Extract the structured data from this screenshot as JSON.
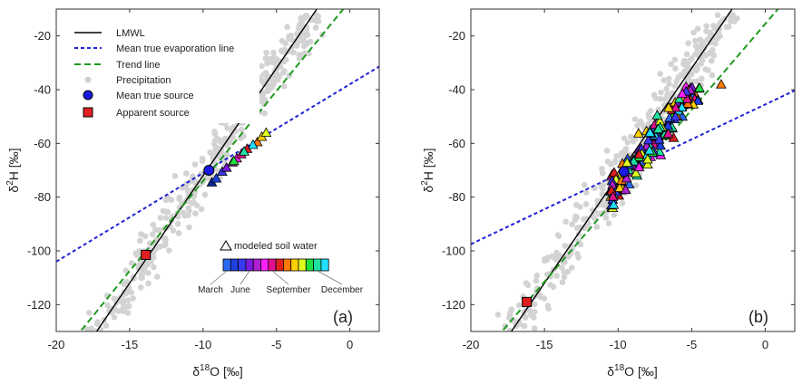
{
  "chart_data": [
    {
      "type": "scatter",
      "panel_label": "(a)",
      "xlabel": {
        "prefix": "δ",
        "sup": "18",
        "main": "O [‰]"
      },
      "ylabel": {
        "prefix": "δ",
        "sup": "2",
        "main": "H [‰]"
      },
      "xlim": [
        -20,
        2
      ],
      "ylim": [
        -130,
        -10
      ],
      "xticks": [
        -20,
        -15,
        -10,
        -5,
        0
      ],
      "yticks": [
        -120,
        -100,
        -80,
        -60,
        -40,
        -20
      ],
      "grid": false,
      "legend": {
        "placement": "top-left",
        "entries": [
          {
            "label": "LMWL",
            "kind": "line",
            "color": "#000000",
            "dash": "solid"
          },
          {
            "label": "Mean true evaporation line",
            "kind": "line",
            "color": "#1f1fd6",
            "dash": "dashed"
          },
          {
            "label": "Trend line",
            "kind": "line",
            "color": "#1f9a1f",
            "dash": "dashed"
          },
          {
            "label": "Precipitation",
            "kind": "dot",
            "color": "#cfcfcf"
          },
          {
            "label": "Mean true source",
            "kind": "circle",
            "color": "#1a1ae0"
          },
          {
            "label": "Apparent source",
            "kind": "square",
            "color": "#e02020"
          }
        ]
      },
      "lines": [
        {
          "name": "LMWL",
          "slope": 8.0,
          "intercept": 8.0,
          "color": "#000000",
          "dash": "solid"
        },
        {
          "name": "Mean true evaporation line",
          "slope": 3.3,
          "intercept": -38.0,
          "color": "#1f1fd6",
          "dash": "dashed"
        },
        {
          "name": "Trend line",
          "slope": 6.7,
          "intercept": -7.0,
          "color": "#1f9a1f",
          "dash": "dashed"
        }
      ],
      "mean_true_source": {
        "x": -9.6,
        "y": -70,
        "color": "#1a1ae0"
      },
      "apparent_source": {
        "x": -13.9,
        "y": -101.5,
        "color": "#e02020"
      },
      "soil_water": [
        {
          "x": -9.4,
          "y": -74.5,
          "color": "#0a2a9a"
        },
        {
          "x": -9.1,
          "y": -73,
          "color": "#2040e0"
        },
        {
          "x": -8.7,
          "y": -70.5,
          "color": "#3a3af0"
        },
        {
          "x": -8.4,
          "y": -69,
          "color": "#7a1ae0"
        },
        {
          "x": -8.0,
          "y": -67,
          "color": "#b020d0"
        },
        {
          "x": -7.7,
          "y": -65.5,
          "color": "#ff20ff"
        },
        {
          "x": -7.4,
          "y": -64,
          "color": "#e01090"
        },
        {
          "x": -7.0,
          "y": -62,
          "color": "#e02020"
        },
        {
          "x": -6.3,
          "y": -59.5,
          "color": "#ff7a00"
        },
        {
          "x": -6.0,
          "y": -57.5,
          "color": "#ffd000"
        },
        {
          "x": -5.7,
          "y": -56,
          "color": "#e0ff20"
        },
        {
          "x": -7.9,
          "y": -66.5,
          "color": "#20e040"
        },
        {
          "x": -7.2,
          "y": -63,
          "color": "#20e0a0"
        },
        {
          "x": -6.6,
          "y": -60.5,
          "color": "#20e0ff"
        }
      ],
      "colorbar": {
        "title": "modeled soil water",
        "colors": [
          "#2a6af0",
          "#2040e0",
          "#3a3af0",
          "#7a1ae0",
          "#b020d0",
          "#ff20ff",
          "#e01090",
          "#e02020",
          "#ff7a00",
          "#ffd000",
          "#e0ff20",
          "#20e040",
          "#20e0a0",
          "#20e0ff"
        ],
        "labels": [
          {
            "text": "March",
            "box": 0
          },
          {
            "text": "June",
            "box": 3
          },
          {
            "text": "September",
            "box": 6
          },
          {
            "text": "December",
            "box": 12
          }
        ]
      }
    },
    {
      "type": "scatter",
      "panel_label": "(b)",
      "xlabel": {
        "prefix": "δ",
        "sup": "18",
        "main": "O [‰]"
      },
      "ylabel": {
        "prefix": "δ",
        "sup": "2",
        "main": "H [‰]"
      },
      "xlim": [
        -20,
        2
      ],
      "ylim": [
        -130,
        -10
      ],
      "xticks": [
        -20,
        -15,
        -10,
        -5,
        0
      ],
      "yticks": [
        -120,
        -100,
        -80,
        -60,
        -40,
        -20
      ],
      "grid": false,
      "lines": [
        {
          "name": "LMWL",
          "slope": 8.0,
          "intercept": 8.0,
          "color": "#000000",
          "dash": "solid"
        },
        {
          "name": "Mean true evaporation line",
          "slope": 2.6,
          "intercept": -45.5,
          "color": "#1f1fd6",
          "dash": "dashed"
        },
        {
          "name": "Trend line",
          "slope": 6.4,
          "intercept": -15.5,
          "color": "#1f9a1f",
          "dash": "dashed"
        }
      ],
      "mean_true_source": {
        "x": -9.6,
        "y": -70.5,
        "color": "#1a1ae0"
      },
      "apparent_source": {
        "x": -16.2,
        "y": -119,
        "color": "#e02020"
      },
      "soil_water_cloud": {
        "x_range": [
          -10.5,
          -3.5
        ],
        "y_range": [
          -93,
          -38
        ],
        "trend_slope": 7.0,
        "trend_intercept": -5.5,
        "extreme_point": {
          "x": -3.0,
          "y": -38,
          "color": "#ff7a00"
        }
      }
    }
  ]
}
